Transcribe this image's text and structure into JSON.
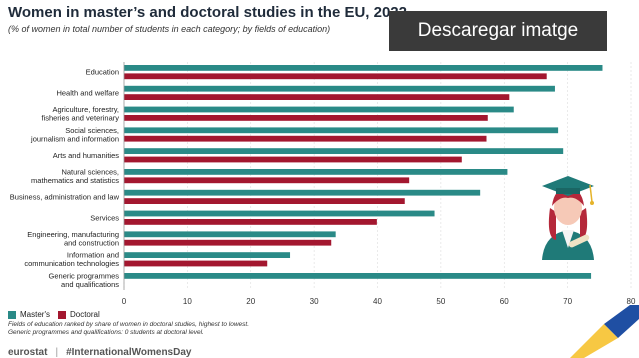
{
  "header": {
    "title": "Women in master’s and doctoral studies in the EU, 2022",
    "subtitle": "(% of women in total number of students in each category; by fields of education)",
    "download_label": "Descaregar imatge"
  },
  "legend": {
    "masters": "Master's",
    "doctoral": "Doctoral"
  },
  "notes": [
    "Fields of education ranked by share of women in doctoral studies, highest to lowest.",
    "Generic programmes and qualifications: 0 students at doctoral level."
  ],
  "footer": {
    "brand": "eurostat",
    "hashtag": "#InternationalWomensDay"
  },
  "colors": {
    "masters": "#2a8a87",
    "doctoral": "#a3172f"
  },
  "chart_data": {
    "type": "bar",
    "orientation": "horizontal",
    "categories": [
      [
        "Education"
      ],
      [
        "Health and welfare"
      ],
      [
        "Agriculture, forestry,",
        "fisheries and veterinary"
      ],
      [
        "Social sciences,",
        "journalism and information"
      ],
      [
        "Arts and humanities"
      ],
      [
        "Natural sciences,",
        "mathematics and statistics"
      ],
      [
        "Business, administration and law"
      ],
      [
        "Services"
      ],
      [
        "Engineering, manufacturing",
        "and construction"
      ],
      [
        "Information and",
        "communication technologies"
      ],
      [
        "Generic programmes",
        "and qualifications"
      ]
    ],
    "series": [
      {
        "name": "Master's",
        "values": [
          75.5,
          68,
          61.5,
          68.5,
          69.3,
          60.5,
          56.2,
          49,
          33.4,
          26.2,
          73.7
        ]
      },
      {
        "name": "Doctoral",
        "values": [
          66.7,
          60.8,
          57.4,
          57.2,
          53.3,
          45,
          44.3,
          39.9,
          32.7,
          22.6,
          0
        ]
      }
    ],
    "xlim": [
      0,
      80
    ],
    "xticks": [
      0,
      10,
      20,
      30,
      40,
      50,
      60,
      70,
      80
    ],
    "grid": true,
    "legend_position": "bottom-left"
  }
}
